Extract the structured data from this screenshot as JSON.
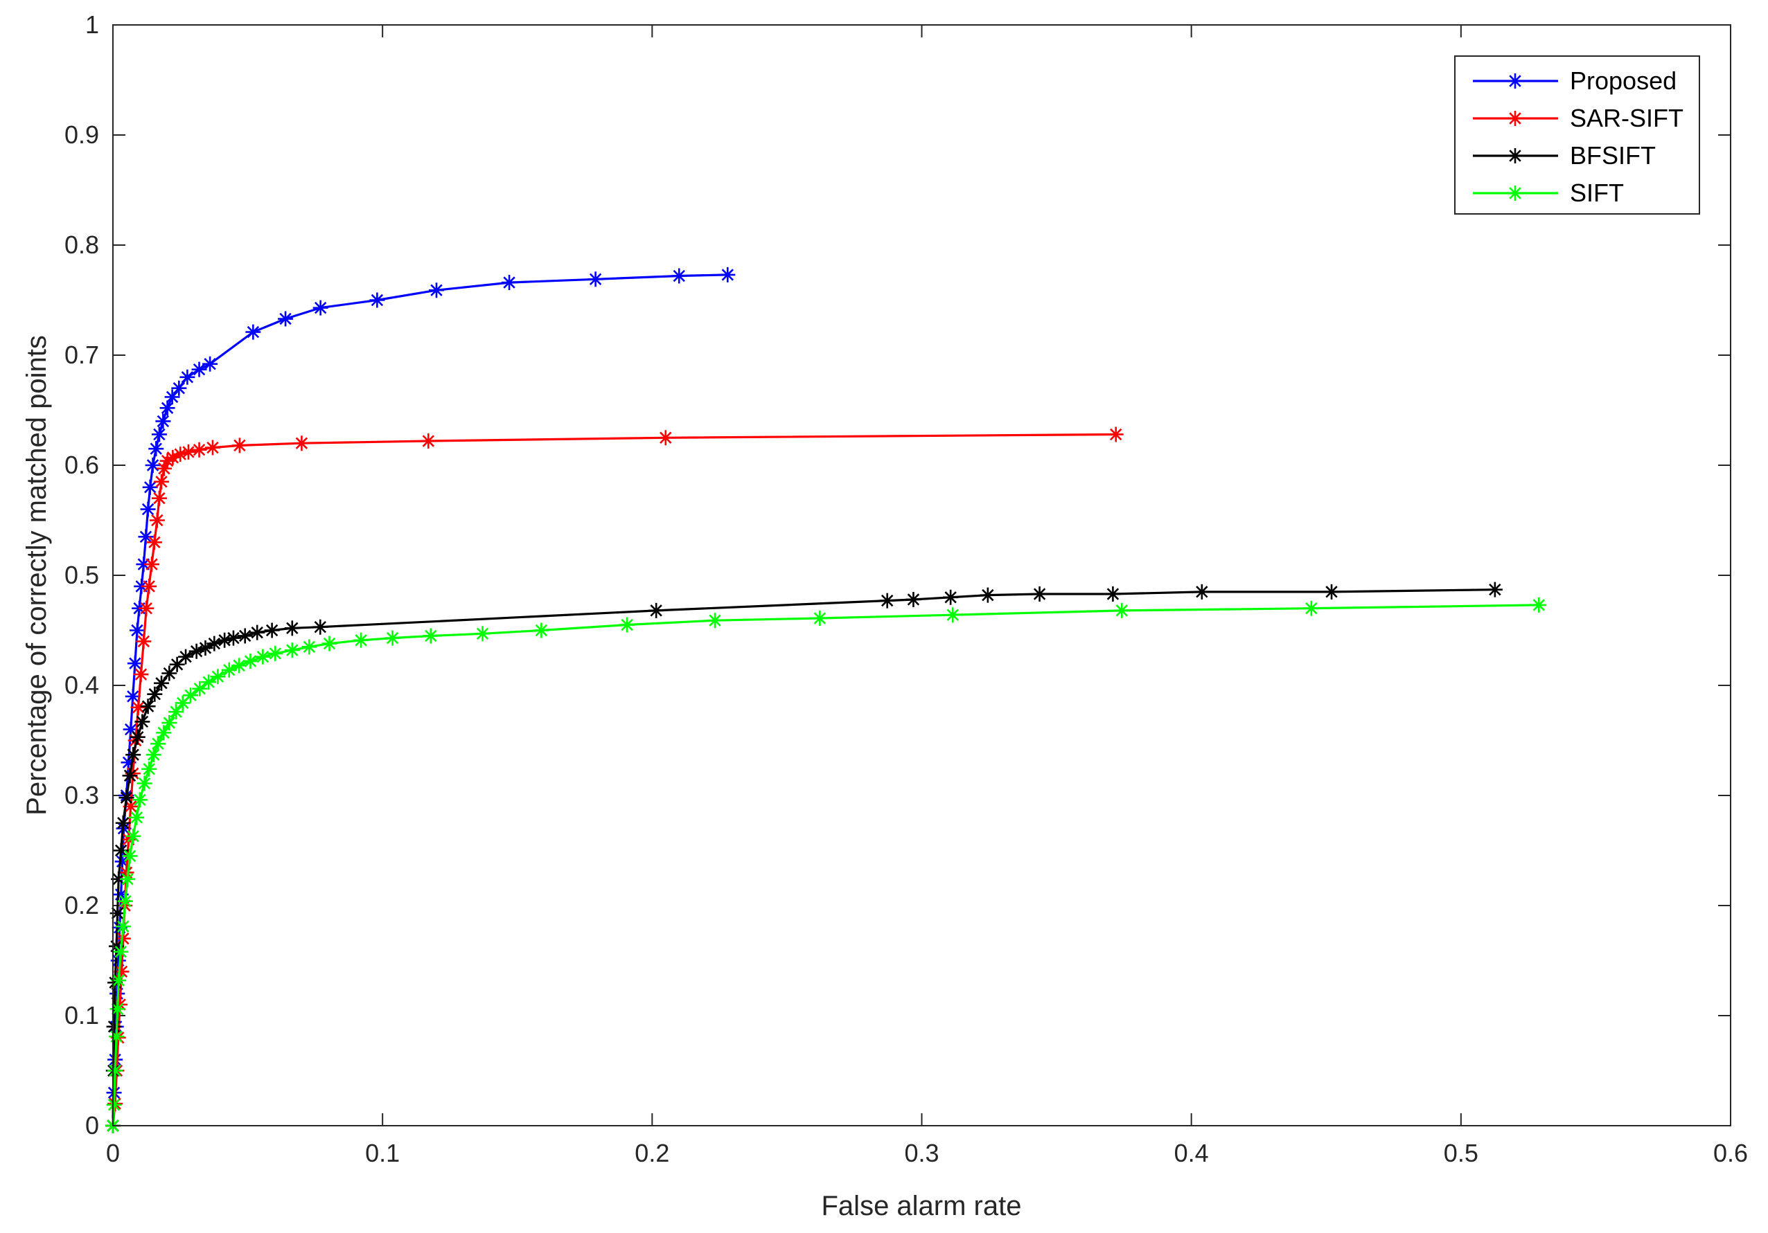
{
  "chart_data": {
    "type": "line",
    "xlabel": "False alarm rate",
    "ylabel": "Percentage of correctly matched points",
    "xlim": [
      0,
      0.6
    ],
    "ylim": [
      0,
      1
    ],
    "xticks": [
      0,
      0.1,
      0.2,
      0.3,
      0.4,
      0.5,
      0.6
    ],
    "xtick_labels": [
      "0",
      "0.1",
      "0.2",
      "0.3",
      "0.4",
      "0.5",
      "0.6"
    ],
    "yticks": [
      0,
      0.1,
      0.2,
      0.3,
      0.4,
      0.5,
      0.6,
      0.7,
      0.8,
      0.9,
      1
    ],
    "ytick_labels": [
      "0",
      "0.1",
      "0.2",
      "0.3",
      "0.4",
      "0.5",
      "0.6",
      "0.7",
      "0.8",
      "0.9",
      "1"
    ],
    "grid": false,
    "legend_position": "top-right",
    "series": [
      {
        "name": "Proposed",
        "color": "#0000ff",
        "marker": "asterisk",
        "x": [
          0,
          0.0004,
          0.0008,
          0.0012,
          0.0016,
          0.002,
          0.0025,
          0.003,
          0.0035,
          0.004,
          0.005,
          0.0058,
          0.0066,
          0.0074,
          0.0082,
          0.009,
          0.0098,
          0.0106,
          0.0114,
          0.0122,
          0.013,
          0.0138,
          0.0148,
          0.016,
          0.0172,
          0.0186,
          0.0202,
          0.022,
          0.0245,
          0.0276,
          0.032,
          0.036,
          0.052,
          0.064,
          0.077,
          0.098,
          0.12,
          0.147,
          0.179,
          0.21,
          0.228
        ],
        "y": [
          0,
          0.03,
          0.06,
          0.09,
          0.12,
          0.15,
          0.18,
          0.21,
          0.24,
          0.27,
          0.3,
          0.33,
          0.36,
          0.39,
          0.42,
          0.45,
          0.47,
          0.49,
          0.51,
          0.535,
          0.56,
          0.58,
          0.6,
          0.615,
          0.628,
          0.64,
          0.652,
          0.662,
          0.67,
          0.68,
          0.687,
          0.692,
          0.721,
          0.733,
          0.743,
          0.75,
          0.759,
          0.766,
          0.769,
          0.772,
          0.773
        ]
      },
      {
        "name": "SAR-SIFT",
        "color": "#ff0000",
        "marker": "asterisk",
        "x": [
          0,
          0.0008,
          0.0014,
          0.002,
          0.0026,
          0.0032,
          0.0038,
          0.0044,
          0.005,
          0.0058,
          0.0066,
          0.0074,
          0.0084,
          0.0094,
          0.0104,
          0.0114,
          0.0124,
          0.0134,
          0.0144,
          0.0154,
          0.0164,
          0.0172,
          0.018,
          0.019,
          0.0202,
          0.0222,
          0.025,
          0.028,
          0.032,
          0.037,
          0.047,
          0.07,
          0.117,
          0.205,
          0.372
        ],
        "y": [
          0,
          0.02,
          0.05,
          0.08,
          0.11,
          0.14,
          0.17,
          0.2,
          0.23,
          0.26,
          0.29,
          0.32,
          0.35,
          0.38,
          0.41,
          0.44,
          0.47,
          0.49,
          0.51,
          0.53,
          0.55,
          0.57,
          0.585,
          0.597,
          0.604,
          0.607,
          0.61,
          0.612,
          0.614,
          0.616,
          0.618,
          0.62,
          0.622,
          0.625,
          0.628
        ]
      },
      {
        "name": "BFSIFT",
        "color": "#000000",
        "marker": "asterisk",
        "x": [
          0,
          0.0002,
          0.0004,
          0.0008,
          0.0013,
          0.0017,
          0.0021,
          0.003,
          0.0038,
          0.005,
          0.0063,
          0.0075,
          0.0092,
          0.0109,
          0.013,
          0.0155,
          0.018,
          0.0209,
          0.0238,
          0.027,
          0.031,
          0.0343,
          0.0376,
          0.0414,
          0.0447,
          0.049,
          0.0535,
          0.059,
          0.0665,
          0.0769,
          0.2015,
          0.2872,
          0.2969,
          0.3107,
          0.3245,
          0.3437,
          0.3709,
          0.4039,
          0.452,
          0.5126
        ],
        "y": [
          0,
          0.05,
          0.09,
          0.13,
          0.163,
          0.193,
          0.224,
          0.25,
          0.275,
          0.298,
          0.318,
          0.337,
          0.353,
          0.367,
          0.381,
          0.392,
          0.402,
          0.411,
          0.419,
          0.426,
          0.431,
          0.434,
          0.438,
          0.441,
          0.443,
          0.445,
          0.448,
          0.45,
          0.452,
          0.453,
          0.468,
          0.477,
          0.478,
          0.48,
          0.482,
          0.483,
          0.483,
          0.485,
          0.485,
          0.487
        ]
      },
      {
        "name": "SIFT",
        "color": "#00ff00",
        "marker": "asterisk",
        "x": [
          0,
          0.0004,
          0.0008,
          0.0013,
          0.0017,
          0.0021,
          0.0029,
          0.0038,
          0.0046,
          0.0054,
          0.0063,
          0.0075,
          0.0088,
          0.01,
          0.0117,
          0.0134,
          0.0151,
          0.0167,
          0.0188,
          0.0209,
          0.0234,
          0.0259,
          0.0288,
          0.0322,
          0.0355,
          0.0389,
          0.0431,
          0.0468,
          0.051,
          0.0556,
          0.0602,
          0.0665,
          0.0728,
          0.0803,
          0.092,
          0.1037,
          0.1179,
          0.1371,
          0.1589,
          0.1907,
          0.2233,
          0.2622,
          0.3115,
          0.3742,
          0.4445,
          0.5289
        ],
        "y": [
          0,
          0.019,
          0.05,
          0.081,
          0.106,
          0.132,
          0.158,
          0.181,
          0.204,
          0.224,
          0.245,
          0.263,
          0.28,
          0.296,
          0.311,
          0.324,
          0.337,
          0.347,
          0.357,
          0.366,
          0.376,
          0.384,
          0.391,
          0.397,
          0.403,
          0.408,
          0.414,
          0.418,
          0.422,
          0.426,
          0.429,
          0.432,
          0.435,
          0.438,
          0.441,
          0.443,
          0.445,
          0.447,
          0.45,
          0.455,
          0.459,
          0.461,
          0.464,
          0.468,
          0.47,
          0.473
        ]
      }
    ]
  }
}
